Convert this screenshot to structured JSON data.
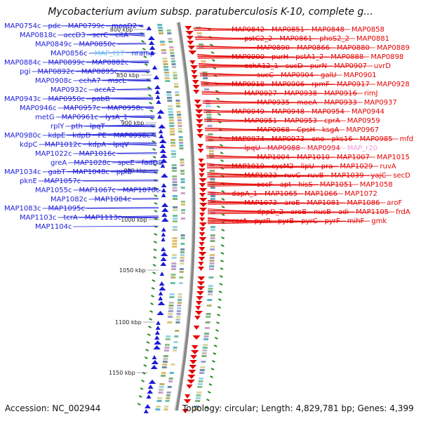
{
  "title": "Mycobacterium avium subsp. paratuberculosis K-10, complete g...",
  "footer": {
    "accession": "Accession: NC_002944",
    "summary": "Topology: circular; Length: 4,829,781 bp; Genes: 4,399"
  },
  "colors": {
    "forward_strand": "#e60000",
    "reverse_strand": "#1c1cd9",
    "trna": "#66ccee",
    "rrna": "#ee99dd",
    "tick_marks": "#228822",
    "backbone": "#999999"
  },
  "scale_ticks": [
    "800 kbp",
    "850 kbp",
    "900 kbp",
    "950 kbp",
    "1000 kbp",
    "1050 kbp",
    "1100 kbp",
    "1150 kbp"
  ],
  "left_labels": [
    {
      "text": "MAP0754c",
      "type": "gene"
    },
    {
      "text": "pdc",
      "type": "gene"
    },
    {
      "text": "MAP0799c",
      "type": "gene"
    },
    {
      "text": "moaD2",
      "type": "gene"
    },
    {
      "text": "MAP0818c",
      "type": "gene"
    },
    {
      "text": "accD3",
      "type": "gene"
    },
    {
      "text": "serC",
      "type": "gene"
    },
    {
      "text": "citA",
      "type": "gene"
    },
    {
      "text": "MAP0849c",
      "type": "gene"
    },
    {
      "text": "MAP0850c",
      "type": "gene"
    },
    {
      "text": "MAP0856c",
      "type": "gene"
    },
    {
      "text": "MAP_t17",
      "type": "trna"
    },
    {
      "text": "nramp",
      "type": "gene"
    },
    {
      "text": "MAP0884c",
      "type": "gene"
    },
    {
      "text": "MAP0899c",
      "type": "gene"
    },
    {
      "text": "MAP0882c",
      "type": "gene"
    },
    {
      "text": "pgi",
      "type": "gene"
    },
    {
      "text": "MAP0892c",
      "type": "gene"
    },
    {
      "text": "MAP0895c",
      "type": "gene"
    },
    {
      "text": "MAP0908c",
      "type": "gene"
    },
    {
      "text": "echA7",
      "type": "gene"
    },
    {
      "text": "mscL",
      "type": "gene"
    },
    {
      "text": "MAP0932c",
      "type": "gene"
    },
    {
      "text": "accA2",
      "type": "gene"
    },
    {
      "text": "MAP0943c",
      "type": "gene"
    },
    {
      "text": "MAP0950c",
      "type": "gene"
    },
    {
      "text": "pabB",
      "type": "gene"
    },
    {
      "text": "MAP0946c",
      "type": "gene"
    },
    {
      "text": "MAP0957c",
      "type": "gene"
    },
    {
      "text": "MAP0958c",
      "type": "gene"
    },
    {
      "text": "metG",
      "type": "gene"
    },
    {
      "text": "MAP0961c",
      "type": "gene"
    },
    {
      "text": "lysA_1",
      "type": "gene"
    },
    {
      "text": "rplY",
      "type": "gene"
    },
    {
      "text": "pth",
      "type": "gene"
    },
    {
      "text": "lpqT",
      "type": "gene"
    },
    {
      "text": "MAP0980c",
      "type": "gene"
    },
    {
      "text": "kdpE",
      "type": "gene"
    },
    {
      "text": "kdpD",
      "type": "gene"
    },
    {
      "text": "PE",
      "type": "gene"
    },
    {
      "text": "MAP0998c",
      "type": "gene"
    },
    {
      "text": "kdpC",
      "type": "gene"
    },
    {
      "text": "MAP1012c",
      "type": "gene"
    },
    {
      "text": "kdpA",
      "type": "gene"
    },
    {
      "text": "lpqV",
      "type": "gene"
    },
    {
      "text": "MAP1022c",
      "type": "gene"
    },
    {
      "text": "MAP1016c",
      "type": "gene"
    },
    {
      "text": "greA",
      "type": "gene"
    },
    {
      "text": "MAP1028c",
      "type": "gene"
    },
    {
      "text": "speE",
      "type": "gene"
    },
    {
      "text": "fadD9",
      "type": "gene"
    },
    {
      "text": "MAP1034c",
      "type": "gene"
    },
    {
      "text": "gabT",
      "type": "gene"
    },
    {
      "text": "MAP1048c",
      "type": "gene"
    },
    {
      "text": "ppiB",
      "type": "gene"
    },
    {
      "text": "pknE",
      "type": "gene"
    },
    {
      "text": "MAP1057c",
      "type": "gene"
    },
    {
      "text": "MAP1055c",
      "type": "gene"
    },
    {
      "text": "MAP1067c",
      "type": "gene"
    },
    {
      "text": "MAP1070c",
      "type": "gene"
    },
    {
      "text": "MAP1082c",
      "type": "gene"
    },
    {
      "text": "MAP1084c",
      "type": "gene"
    },
    {
      "text": "MAP1083c",
      "type": "gene"
    },
    {
      "text": "MAP1095c",
      "type": "gene"
    },
    {
      "text": "MAP1103c",
      "type": "gene"
    },
    {
      "text": "tcrA",
      "type": "gene"
    },
    {
      "text": "MAP1113c",
      "type": "gene"
    },
    {
      "text": "MAP1104c",
      "type": "gene"
    }
  ],
  "right_labels": [
    {
      "text": "MAP0842",
      "type": "gene"
    },
    {
      "text": "MAP0851",
      "type": "gene"
    },
    {
      "text": "MAP0848",
      "type": "gene"
    },
    {
      "text": "MAP0858",
      "type": "gene"
    },
    {
      "text": "pstC2_2",
      "type": "gene"
    },
    {
      "text": "MAP0861",
      "type": "gene"
    },
    {
      "text": "phoS2_2",
      "type": "gene"
    },
    {
      "text": "MAP0881",
      "type": "gene"
    },
    {
      "text": "MAP0890",
      "type": "gene"
    },
    {
      "text": "MAP0866",
      "type": "gene"
    },
    {
      "text": "MAP0880",
      "type": "gene"
    },
    {
      "text": "MAP0889",
      "type": "gene"
    },
    {
      "text": "MAP0900",
      "type": "gene"
    },
    {
      "text": "purH",
      "type": "gene"
    },
    {
      "text": "pstA1_2",
      "type": "gene"
    },
    {
      "text": "MAP0888",
      "type": "gene"
    },
    {
      "text": "MAP0898",
      "type": "gene"
    },
    {
      "text": "echA12_1",
      "type": "gene"
    },
    {
      "text": "sucD",
      "type": "gene"
    },
    {
      "text": "purN",
      "type": "gene"
    },
    {
      "text": "MAP0907",
      "type": "gene"
    },
    {
      "text": "uvrD",
      "type": "gene"
    },
    {
      "text": "sucC",
      "type": "gene"
    },
    {
      "text": "MAP0904",
      "type": "gene"
    },
    {
      "text": "galU",
      "type": "gene"
    },
    {
      "text": "MAP0901",
      "type": "gene"
    },
    {
      "text": "MAP0918",
      "type": "gene"
    },
    {
      "text": "MAP0906",
      "type": "gene"
    },
    {
      "text": "rpmF",
      "type": "gene"
    },
    {
      "text": "MAP0917",
      "type": "gene"
    },
    {
      "text": "MAP0928",
      "type": "gene"
    },
    {
      "text": "MAP0927",
      "type": "gene"
    },
    {
      "text": "MAP0938",
      "type": "gene"
    },
    {
      "text": "MAP0916",
      "type": "gene"
    },
    {
      "text": "rimJ",
      "type": "gene"
    },
    {
      "text": "MAP0935",
      "type": "gene"
    },
    {
      "text": "moeA",
      "type": "gene"
    },
    {
      "text": "MAP0933",
      "type": "gene"
    },
    {
      "text": "MAP0937",
      "type": "gene"
    },
    {
      "text": "MAP0949",
      "type": "gene"
    },
    {
      "text": "MAP0948",
      "type": "gene"
    },
    {
      "text": "MAP0954",
      "type": "gene"
    },
    {
      "text": "MAP0944",
      "type": "gene"
    },
    {
      "text": "MAP0951",
      "type": "gene"
    },
    {
      "text": "MAP0953",
      "type": "gene"
    },
    {
      "text": "cprA",
      "type": "gene"
    },
    {
      "text": "MAP0959",
      "type": "gene"
    },
    {
      "text": "MAP0968",
      "type": "gene"
    },
    {
      "text": "CpsH",
      "type": "gene"
    },
    {
      "text": "ksgA",
      "type": "gene"
    },
    {
      "text": "MAP0967",
      "type": "gene"
    },
    {
      "text": "MAP0974",
      "type": "gene"
    },
    {
      "text": "MAP0973",
      "type": "gene"
    },
    {
      "text": "eno",
      "type": "gene"
    },
    {
      "text": "pks16",
      "type": "gene"
    },
    {
      "text": "MAP0985",
      "type": "gene"
    },
    {
      "text": "mfd",
      "type": "gene"
    },
    {
      "text": "lpqU",
      "type": "gene"
    },
    {
      "text": "MAP0988",
      "type": "gene"
    },
    {
      "text": "MAP0994",
      "type": "gene"
    },
    {
      "text": "MAP_r20",
      "type": "rrna"
    },
    {
      "text": "MAP1004",
      "type": "gene"
    },
    {
      "text": "MAP1010",
      "type": "gene"
    },
    {
      "text": "MAP1007",
      "type": "gene"
    },
    {
      "text": "MAP1015",
      "type": "gene"
    },
    {
      "text": "MAP1019",
      "type": "gene"
    },
    {
      "text": "cysM2",
      "type": "gene"
    },
    {
      "text": "lipU",
      "type": "gene"
    },
    {
      "text": "pra",
      "type": "gene"
    },
    {
      "text": "MAP1029",
      "type": "gene"
    },
    {
      "text": "ruvA",
      "type": "gene"
    },
    {
      "text": "MAP1033",
      "type": "gene"
    },
    {
      "text": "ruvC",
      "type": "gene"
    },
    {
      "text": "ruvB",
      "type": "gene"
    },
    {
      "text": "MAP1039",
      "type": "gene"
    },
    {
      "text": "yajC",
      "type": "gene"
    },
    {
      "text": "secD",
      "type": "gene"
    },
    {
      "text": "secF",
      "type": "gene"
    },
    {
      "text": "apt",
      "type": "gene"
    },
    {
      "text": "hisS",
      "type": "gene"
    },
    {
      "text": "MAP1051",
      "type": "gene"
    },
    {
      "text": "MAP1058",
      "type": "gene"
    },
    {
      "text": "dapA_1",
      "type": "gene"
    },
    {
      "text": "MAP1065",
      "type": "gene"
    },
    {
      "text": "MAP1066",
      "type": "gene"
    },
    {
      "text": "MAP1072",
      "type": "gene"
    },
    {
      "text": "MAP1073",
      "type": "gene"
    },
    {
      "text": "aroE",
      "type": "gene"
    },
    {
      "text": "MAP1081",
      "type": "gene"
    },
    {
      "text": "MAP1086",
      "type": "gene"
    },
    {
      "text": "aroF",
      "type": "gene"
    },
    {
      "text": "dppD_2",
      "type": "gene"
    },
    {
      "text": "aroB",
      "type": "gene"
    },
    {
      "text": "nusB",
      "type": "gene"
    },
    {
      "text": "adi",
      "type": "gene"
    },
    {
      "text": "MAP1105",
      "type": "gene"
    },
    {
      "text": "frdA",
      "type": "gene"
    },
    {
      "text": "carA",
      "type": "gene"
    },
    {
      "text": "pyrR",
      "type": "gene"
    },
    {
      "text": "pyrB",
      "type": "gene"
    },
    {
      "text": "pyrC",
      "type": "gene"
    },
    {
      "text": "pyrF",
      "type": "gene"
    },
    {
      "text": "mihF",
      "type": "gene"
    },
    {
      "text": "gmk",
      "type": "gene"
    }
  ]
}
